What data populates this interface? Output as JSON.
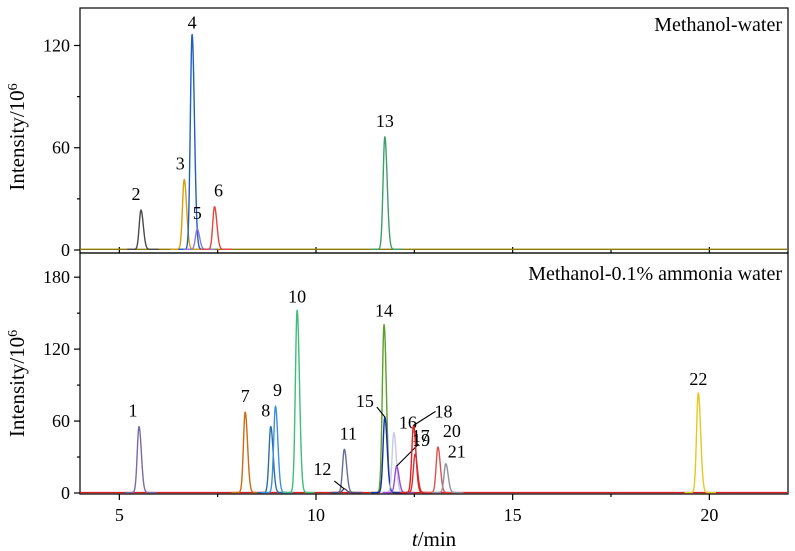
{
  "chart_data": {
    "type": "line",
    "xlabel_italic": "t",
    "xlabel_rest": "/min",
    "xlim": [
      4,
      22
    ],
    "xticks": [
      5,
      10,
      15,
      20
    ],
    "colors": {
      "baseline_top": "#8B7A00",
      "baseline_bottom": "#D62020",
      "p1": "#7A6AA8",
      "p2": "#4A4A4A",
      "p3": "#D4A012",
      "p4": "#1F5FC2",
      "p5": "#8E7BD8",
      "p6": "#E0463C",
      "p7": "#D06A10",
      "p8": "#2B6FA8",
      "p9": "#3E8FE0",
      "p10": "#3DBE7A",
      "p11": "#6A6A9A",
      "p12": "#5A4A70",
      "p13": "#3DA06A",
      "p14": "#5AA02A",
      "p15": "#1A2FA8",
      "p16": "#C8C8E8",
      "p17": "#9A4ADA",
      "p18": "#E02020",
      "p19": "#D03030",
      "p20": "#E05050",
      "p21": "#9090A0",
      "p22": "#E6C820"
    },
    "panels": [
      {
        "title": "Methanol-water",
        "ylabel_base": "Intensity/10",
        "ylabel_exp": "6",
        "ylim": [
          0,
          142
        ],
        "yticks": [
          0,
          60,
          120
        ],
        "peaks": [
          {
            "label": "2",
            "rt": 5.55,
            "height": 23,
            "color_key": "p2"
          },
          {
            "label": "3",
            "rt": 6.65,
            "height": 41,
            "color_key": "p3"
          },
          {
            "label": "4",
            "rt": 6.85,
            "height": 126,
            "color_key": "p4"
          },
          {
            "label": "5",
            "rt": 6.98,
            "height": 12,
            "color_key": "p5"
          },
          {
            "label": "6",
            "rt": 7.42,
            "height": 25,
            "color_key": "p6"
          },
          {
            "label": "13",
            "rt": 11.75,
            "height": 66,
            "color_key": "p13"
          }
        ]
      },
      {
        "title": "Methanol-0.1% ammonia water",
        "ylabel_base": "Intensity/10",
        "ylabel_exp": "6",
        "ylim": [
          0,
          196
        ],
        "yticks": [
          0,
          60,
          120,
          180
        ],
        "peaks": [
          {
            "label": "1",
            "rt": 5.5,
            "height": 55,
            "color_key": "p1"
          },
          {
            "label": "7",
            "rt": 8.2,
            "height": 67,
            "color_key": "p7"
          },
          {
            "label": "8",
            "rt": 8.85,
            "height": 55,
            "color_key": "p8"
          },
          {
            "label": "9",
            "rt": 8.97,
            "height": 72,
            "color_key": "p9"
          },
          {
            "label": "10",
            "rt": 9.52,
            "height": 152,
            "color_key": "p10"
          },
          {
            "label": "11",
            "rt": 10.72,
            "height": 36,
            "color_key": "p11"
          },
          {
            "label": "12",
            "rt": 10.72,
            "height": 3,
            "color_key": "p12"
          },
          {
            "label": "14",
            "rt": 11.73,
            "height": 140,
            "color_key": "p14"
          },
          {
            "label": "15",
            "rt": 11.75,
            "height": 63,
            "color_key": "p15"
          },
          {
            "label": "16",
            "rt": 11.98,
            "height": 50,
            "color_key": "p16"
          },
          {
            "label": "17",
            "rt": 12.05,
            "height": 22,
            "color_key": "p17"
          },
          {
            "label": "18",
            "rt": 12.48,
            "height": 56,
            "color_key": "p18"
          },
          {
            "label": "19",
            "rt": 12.52,
            "height": 32,
            "color_key": "p19"
          },
          {
            "label": "20",
            "rt": 13.1,
            "height": 38,
            "color_key": "p20"
          },
          {
            "label": "21",
            "rt": 13.3,
            "height": 24,
            "color_key": "p21"
          },
          {
            "label": "22",
            "rt": 19.72,
            "height": 83,
            "color_key": "p22"
          }
        ]
      }
    ]
  }
}
